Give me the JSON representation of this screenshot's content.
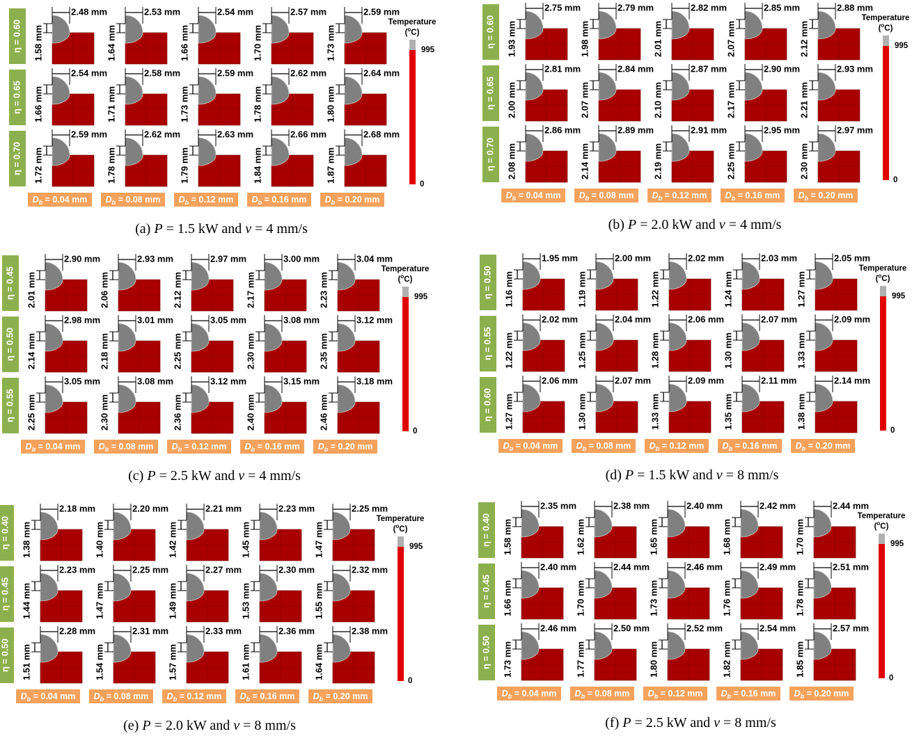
{
  "panels": [
    {
      "row_labels": [
        "η = 0.60",
        "η = 0.65",
        "η = 0.70"
      ],
      "col_symbol": "D",
      "col_subscript": "b",
      "col_labels": [
        " = 0.04 mm",
        " = 0.08 mm",
        " = 0.12 mm",
        " = 0.16 mm",
        " = 0.20 mm"
      ],
      "widths": [
        [
          "2.48 mm",
          "2.53 mm",
          "2.54 mm",
          "2.57 mm",
          "2.59 mm"
        ],
        [
          "2.54 mm",
          "2.58 mm",
          "2.59 mm",
          "2.62 mm",
          "2.64 mm"
        ],
        [
          "2.59 mm",
          "2.62 mm",
          "2.63 mm",
          "2.66 mm",
          "2.68 mm"
        ]
      ],
      "heights": [
        [
          "1.58 mm",
          "1.64 mm",
          "1.66 mm",
          "1.70 mm",
          "1.73 mm"
        ],
        [
          "1.66 mm",
          "1.71 mm",
          "1.73 mm",
          "1.78 mm",
          "1.80 mm"
        ],
        [
          "1.72 mm",
          "1.78 mm",
          "1.79 mm",
          "1.84 mm",
          "1.87 mm"
        ]
      ],
      "legend": {
        "title": "Temperature",
        "unit": [
          "(",
          "o",
          "C)"
        ],
        "max": "995",
        "min": "0"
      },
      "caption": [
        "(a) ",
        "P",
        " = 1.5 kW and ",
        "v",
        " = 4 mm/s"
      ]
    },
    {
      "row_labels": [
        "η = 0.60",
        "η = 0.65",
        "η = 0.70"
      ],
      "col_symbol": "D",
      "col_subscript": "b",
      "col_labels": [
        " = 0.04 mm",
        " = 0.08 mm",
        " = 0.12 mm",
        " = 0.16 mm",
        " = 0.20 mm"
      ],
      "widths": [
        [
          "2.75 mm",
          "2.79 mm",
          "2.82 mm",
          "2.85 mm",
          "2.88 mm"
        ],
        [
          "2.81 mm",
          "2.84 mm",
          "2.87 mm",
          "2.90 mm",
          "2.93 mm"
        ],
        [
          "2.86 mm",
          "2.89 mm",
          "2.91 mm",
          "2.95 mm",
          "2.97 mm"
        ]
      ],
      "heights": [
        [
          "1.93 mm",
          "1.98 mm",
          "2.01 mm",
          "2.07 mm",
          "2.12 mm"
        ],
        [
          "2.00 mm",
          "2.07 mm",
          "2.10 mm",
          "2.17 mm",
          "2.21 mm"
        ],
        [
          "2.08 mm",
          "2.14 mm",
          "2.19 mm",
          "2.25 mm",
          "2.30 mm"
        ]
      ],
      "legend": {
        "title": "Temperature",
        "unit": [
          "(",
          "o",
          "C)"
        ],
        "max": "995",
        "min": "0"
      },
      "caption": [
        "(b) ",
        "P",
        " = 2.0 kW and ",
        "v",
        " = 4 mm/s"
      ]
    },
    {
      "row_labels": [
        "η = 0.45",
        "η = 0.50",
        "η = 0.55"
      ],
      "col_symbol": "D",
      "col_subscript": "b",
      "col_labels": [
        " = 0.04 mm",
        " = 0.08 mm",
        " = 0.12 mm",
        " = 0.16 mm",
        " = 0.20 mm"
      ],
      "widths": [
        [
          "2.90 mm",
          "2.93 mm",
          "2.97 mm",
          "3.00 mm",
          "3.04 mm"
        ],
        [
          "2.98 mm",
          "3.01 mm",
          "3.05 mm",
          "3.08 mm",
          "3.12 mm"
        ],
        [
          "3.05 mm",
          "3.08 mm",
          "3.12 mm",
          "3.15 mm",
          "3.18 mm"
        ]
      ],
      "heights": [
        [
          "2.01 mm",
          "2.06 mm",
          "2.12 mm",
          "2.17 mm",
          "2.23 mm"
        ],
        [
          "2.14 mm",
          "2.18 mm",
          "2.25 mm",
          "2.30 mm",
          "2.35 mm"
        ],
        [
          "2.25 mm",
          "2.30 mm",
          "2.36 mm",
          "2.40 mm",
          "2.46 mm"
        ]
      ],
      "legend": {
        "title": "Temperature",
        "unit": [
          "(",
          "o",
          "C)"
        ],
        "max": "995",
        "min": "0"
      },
      "caption": [
        "(c) ",
        "P",
        " = 2.5 kW and ",
        "v",
        " = 4 mm/s"
      ]
    },
    {
      "row_labels": [
        "η = 0.50",
        "η = 0.55",
        "η = 0.60"
      ],
      "col_symbol": "D",
      "col_subscript": "b",
      "col_labels": [
        " = 0.04 mm",
        " = 0.08 mm",
        " = 0.12 mm",
        " = 0.16 mm",
        " = 0.20 mm"
      ],
      "widths": [
        [
          "1.95 mm",
          "2.00 mm",
          "2.02 mm",
          "2.03 mm",
          "2.05 mm"
        ],
        [
          "2.02 mm",
          "2.04 mm",
          "2.06 mm",
          "2.07 mm",
          "2.09 mm"
        ],
        [
          "2.06 mm",
          "2.07 mm",
          "2.09 mm",
          "2.11 mm",
          "2.14 mm"
        ]
      ],
      "heights": [
        [
          "1.16 mm",
          "1.19 mm",
          "1.22 mm",
          "1.24 mm",
          "1.27 mm"
        ],
        [
          "1.22 mm",
          "1.25 mm",
          "1.28 mm",
          "1.30 mm",
          "1.33 mm"
        ],
        [
          "1.27 mm",
          "1.30 mm",
          "1.33 mm",
          "1.35 mm",
          "1.38 mm"
        ]
      ],
      "legend": {
        "title": "Temperature",
        "unit": [
          "(",
          "o",
          "C)"
        ],
        "max": "995",
        "min": "0"
      },
      "caption": [
        "(d) ",
        "P",
        " = 1.5 kW and ",
        "v",
        " = 8 mm/s"
      ]
    },
    {
      "row_labels": [
        "η = 0.40",
        "η = 0.45",
        "η = 0.50"
      ],
      "col_symbol": "D",
      "col_subscript": "b",
      "col_labels": [
        " = 0.04 mm",
        " = 0.08 mm",
        " = 0.12 mm",
        " = 0.16 mm",
        " = 0.20 mm"
      ],
      "widths": [
        [
          "2.18 mm",
          "2.20 mm",
          "2.21 mm",
          "2.23 mm",
          "2.25 mm"
        ],
        [
          "2.23 mm",
          "2.25 mm",
          "2.27 mm",
          "2.30 mm",
          "2.32 mm"
        ],
        [
          "2.28 mm",
          "2.31 mm",
          "2.33 mm",
          "2.36 mm",
          "2.38 mm"
        ]
      ],
      "heights": [
        [
          "1.38 mm",
          "1.40 mm",
          "1.42 mm",
          "1.45 mm",
          "1.47 mm"
        ],
        [
          "1.44 mm",
          "1.47 mm",
          "1.49 mm",
          "1.53 mm",
          "1.55 mm"
        ],
        [
          "1.51 mm",
          "1.54 mm",
          "1.57 mm",
          "1.61 mm",
          "1.64 mm"
        ]
      ],
      "legend": {
        "title": "Temperature",
        "unit": [
          "(",
          "o",
          "C)"
        ],
        "max": "995",
        "min": "0"
      },
      "caption": [
        "(e) ",
        "P",
        " = 2.0 kW and ",
        "v",
        " = 8 mm/s"
      ]
    },
    {
      "row_labels": [
        "η = 0.40",
        "η = 0.45",
        "η = 0.50"
      ],
      "col_symbol": "D",
      "col_subscript": "b",
      "col_labels": [
        " = 0.04 mm",
        " = 0.08 mm",
        " = 0.12 mm",
        " = 0.16 mm",
        " = 0.20 mm"
      ],
      "widths": [
        [
          "2.35 mm",
          "2.38 mm",
          "2.40 mm",
          "2.42 mm",
          "2.44 mm"
        ],
        [
          "2.40 mm",
          "2.44 mm",
          "2.46 mm",
          "2.49 mm",
          "2.51 mm"
        ],
        [
          "2.46 mm",
          "2.50 mm",
          "2.52 mm",
          "2.54 mm",
          "2.57 mm"
        ]
      ],
      "heights": [
        [
          "1.58 mm",
          "1.62 mm",
          "1.65 mm",
          "1.68 mm",
          "1.70 mm"
        ],
        [
          "1.66 mm",
          "1.70 mm",
          "1.73 mm",
          "1.76 mm",
          "1.78 mm"
        ],
        [
          "1.73 mm",
          "1.77 mm",
          "1.80 mm",
          "1.82 mm",
          "1.85 mm"
        ]
      ],
      "legend": {
        "title": "Temperature",
        "unit": [
          "(",
          "o",
          "C)"
        ],
        "max": "995",
        "min": "0"
      },
      "caption": [
        "(f) ",
        "P",
        " = 2.5 kW and ",
        "v",
        " = 8 mm/s"
      ]
    }
  ]
}
